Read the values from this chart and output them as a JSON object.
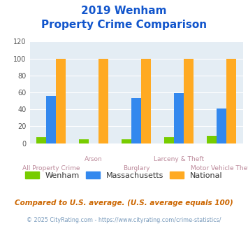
{
  "title_line1": "2019 Wenham",
  "title_line2": "Property Crime Comparison",
  "categories": [
    "All Property Crime",
    "Arson",
    "Burglary",
    "Larceny & Theft",
    "Motor Vehicle Theft"
  ],
  "wenham": [
    7,
    5,
    5,
    7,
    9
  ],
  "massachusetts": [
    56,
    0,
    53,
    59,
    41
  ],
  "national": [
    100,
    100,
    100,
    100,
    100
  ],
  "colors": {
    "wenham": "#77cc00",
    "massachusetts": "#3388ee",
    "national": "#ffaa22"
  },
  "ylim": [
    0,
    120
  ],
  "yticks": [
    0,
    20,
    40,
    60,
    80,
    100,
    120
  ],
  "legend_labels": [
    "Wenham",
    "Massachusetts",
    "National"
  ],
  "footnote1": "Compared to U.S. average. (U.S. average equals 100)",
  "footnote2": "© 2025 CityRating.com - https://www.cityrating.com/crime-statistics/",
  "bg_color": "#e4edf4",
  "title_color": "#1155cc",
  "xticklabel_color": "#bb8899",
  "footnote1_color": "#cc6600",
  "footnote2_color": "#7799bb"
}
